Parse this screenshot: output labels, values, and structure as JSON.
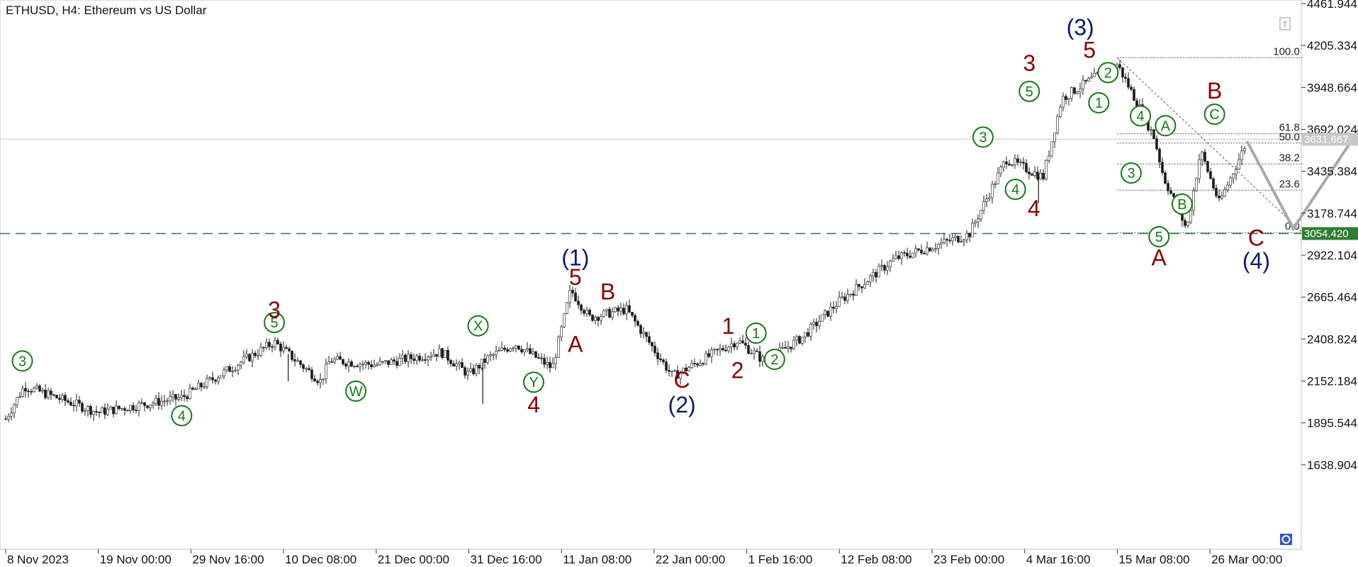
{
  "chart_data": {
    "type": "candlestick",
    "title": "ETHUSD, H4:  Ethereum vs US Dollar",
    "ylim": [
      1382.264,
      4461.944
    ],
    "y_ticks": [
      "4461.944",
      "4205.334",
      "3948.664",
      "3692.024",
      "3435.384",
      "3178.744",
      "2922.104",
      "2665.464",
      "2408.824",
      "2152.184",
      "1895.544",
      "1638.904"
    ],
    "x_ticks": [
      {
        "label": "8 Nov 2023",
        "i": 0
      },
      {
        "label": "19 Nov 00:00",
        "i": 1
      },
      {
        "label": "29 Nov 16:00",
        "i": 2
      },
      {
        "label": "10 Dec 08:00",
        "i": 3
      },
      {
        "label": "21 Dec 00:00",
        "i": 4
      },
      {
        "label": "31 Dec 16:00",
        "i": 5
      },
      {
        "label": "11 Jan 08:00",
        "i": 6
      },
      {
        "label": "22 Jan 00:00",
        "i": 7
      },
      {
        "label": "1 Feb 16:00",
        "i": 8
      },
      {
        "label": "12 Feb 08:00",
        "i": 9
      },
      {
        "label": "23 Feb 00:00",
        "i": 10
      },
      {
        "label": "4 Mar 16:00",
        "i": 11
      },
      {
        "label": "15 Mar 08:00",
        "i": 12
      },
      {
        "label": "26 Mar 00:00",
        "i": 13
      }
    ],
    "price_path": [
      [
        0,
        1920
      ],
      [
        0.2,
        2120
      ],
      [
        1.0,
        1960
      ],
      [
        1.9,
        2050
      ],
      [
        2.9,
        2390
      ],
      [
        3.4,
        2150
      ],
      [
        3.5,
        2280
      ],
      [
        4.0,
        2250
      ],
      [
        4.7,
        2330
      ],
      [
        5.0,
        2190
      ],
      [
        5.2,
        2290
      ],
      [
        5.5,
        2380
      ],
      [
        5.9,
        2230
      ],
      [
        6.1,
        2710
      ],
      [
        6.3,
        2540
      ],
      [
        6.7,
        2590
      ],
      [
        7.2,
        2180
      ],
      [
        7.9,
        2400
      ],
      [
        8.2,
        2270
      ],
      [
        8.6,
        2420
      ],
      [
        9.0,
        2640
      ],
      [
        9.6,
        2900
      ],
      [
        10.4,
        3050
      ],
      [
        10.8,
        3510
      ],
      [
        11.2,
        3400
      ],
      [
        11.4,
        3880
      ],
      [
        11.7,
        3990
      ],
      [
        12.0,
        4090
      ],
      [
        12.2,
        3870
      ],
      [
        12.4,
        3640
      ],
      [
        12.5,
        3400
      ],
      [
        12.75,
        3080
      ],
      [
        12.9,
        3560
      ],
      [
        13.1,
        3240
      ],
      [
        13.4,
        3620
      ]
    ],
    "spikes": [
      {
        "i": 5.15,
        "low": 2010
      },
      {
        "i": 3.05,
        "low": 2150
      },
      {
        "i": 11.15,
        "low": 3240
      }
    ],
    "current_price": "3631.667",
    "support_level": "3054.420",
    "fibonacci": [
      {
        "label": "100.0",
        "value": 4130
      },
      {
        "label": "61.8",
        "value": 3665
      },
      {
        "label": "50.0",
        "value": 3608
      },
      {
        "label": "38.2",
        "value": 3480
      },
      {
        "label": "23.6",
        "value": 3320
      },
      {
        "label": "0.0",
        "value": 3060
      }
    ],
    "projection": [
      [
        13.4,
        3620
      ],
      [
        13.9,
        3085
      ],
      [
        14.9,
        3940
      ]
    ],
    "wave_labels": [
      {
        "text": "3",
        "i": 0.18,
        "v": 2240,
        "style": "circled"
      },
      {
        "text": "4",
        "i": 1.9,
        "v": 1905,
        "style": "circled"
      },
      {
        "text": "5",
        "i": 2.9,
        "v": 2475,
        "style": "circled"
      },
      {
        "text": "3",
        "i": 2.9,
        "v": 2540,
        "style": "red"
      },
      {
        "text": "W",
        "i": 3.78,
        "v": 2055,
        "style": "circled"
      },
      {
        "text": "X",
        "i": 5.1,
        "v": 2455,
        "style": "circled"
      },
      {
        "text": "Y",
        "i": 5.7,
        "v": 2110,
        "style": "circled"
      },
      {
        "text": "4",
        "i": 5.7,
        "v": 1960,
        "style": "red"
      },
      {
        "text": "(1)",
        "i": 6.15,
        "v": 2860,
        "style": "navy"
      },
      {
        "text": "5",
        "i": 6.15,
        "v": 2740,
        "style": "red"
      },
      {
        "text": "A",
        "i": 6.15,
        "v": 2330,
        "style": "red"
      },
      {
        "text": "B",
        "i": 6.5,
        "v": 2650,
        "style": "red"
      },
      {
        "text": "C",
        "i": 7.3,
        "v": 2110,
        "style": "red"
      },
      {
        "text": "(2)",
        "i": 7.3,
        "v": 1960,
        "style": "navy"
      },
      {
        "text": "1",
        "i": 7.8,
        "v": 2440,
        "style": "red"
      },
      {
        "text": "2",
        "i": 7.9,
        "v": 2170,
        "style": "red"
      },
      {
        "text": "1",
        "i": 8.1,
        "v": 2410,
        "style": "circled"
      },
      {
        "text": "2",
        "i": 8.3,
        "v": 2250,
        "style": "circled"
      },
      {
        "text": "3",
        "i": 10.55,
        "v": 3610,
        "style": "circled"
      },
      {
        "text": "4",
        "i": 10.9,
        "v": 3290,
        "style": "circled"
      },
      {
        "text": "4",
        "i": 11.1,
        "v": 3160,
        "style": "red"
      },
      {
        "text": "5",
        "i": 11.05,
        "v": 3890,
        "style": "circled"
      },
      {
        "text": "3",
        "i": 11.05,
        "v": 4050,
        "style": "red"
      },
      {
        "text": "(3)",
        "i": 11.6,
        "v": 4270,
        "style": "navy"
      },
      {
        "text": "5",
        "i": 11.7,
        "v": 4130,
        "style": "red"
      },
      {
        "text": "2",
        "i": 11.9,
        "v": 4005,
        "style": "circled"
      },
      {
        "text": "1",
        "i": 11.8,
        "v": 3820,
        "style": "circled"
      },
      {
        "text": "4",
        "i": 12.25,
        "v": 3740,
        "style": "circled"
      },
      {
        "text": "A",
        "i": 12.52,
        "v": 3680,
        "style": "circled"
      },
      {
        "text": "3",
        "i": 12.15,
        "v": 3390,
        "style": "circled"
      },
      {
        "text": "B",
        "i": 12.7,
        "v": 3200,
        "style": "circled"
      },
      {
        "text": "5",
        "i": 12.45,
        "v": 3000,
        "style": "circled"
      },
      {
        "text": "A",
        "i": 12.45,
        "v": 2860,
        "style": "red"
      },
      {
        "text": "B",
        "i": 13.05,
        "v": 3880,
        "style": "red"
      },
      {
        "text": "C",
        "i": 13.05,
        "v": 3750,
        "style": "circled"
      },
      {
        "text": "C",
        "i": 13.5,
        "v": 2980,
        "style": "red"
      },
      {
        "text": "(4)",
        "i": 13.5,
        "v": 2840,
        "style": "navy"
      }
    ],
    "colors": {
      "up": "#1a1a1a",
      "down": "#1a1a1a",
      "wave_red": "#8b0000",
      "wave_navy": "#0a1a6e",
      "wave_green": "#157a15",
      "projection": "#a9a9a9",
      "support": "#2e7d32"
    }
  }
}
